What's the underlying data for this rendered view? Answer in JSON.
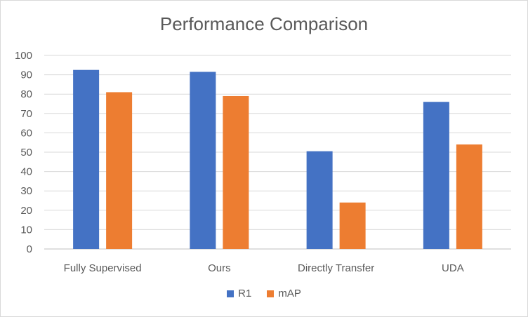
{
  "chart_data": {
    "type": "bar",
    "title": "Performance Comparison",
    "categories": [
      "Fully Supervised",
      "Ours",
      "Directly Transfer",
      "UDA"
    ],
    "series": [
      {
        "name": "R1",
        "color": "#4472C4",
        "values": [
          92.5,
          91.5,
          50.5,
          76
        ]
      },
      {
        "name": "mAP",
        "color": "#ED7D31",
        "values": [
          81,
          79,
          24,
          54
        ]
      }
    ],
    "ylim": [
      0,
      100
    ],
    "yticks": [
      0,
      10,
      20,
      30,
      40,
      50,
      60,
      70,
      80,
      90,
      100
    ],
    "grid": true,
    "legend": "bottom"
  }
}
